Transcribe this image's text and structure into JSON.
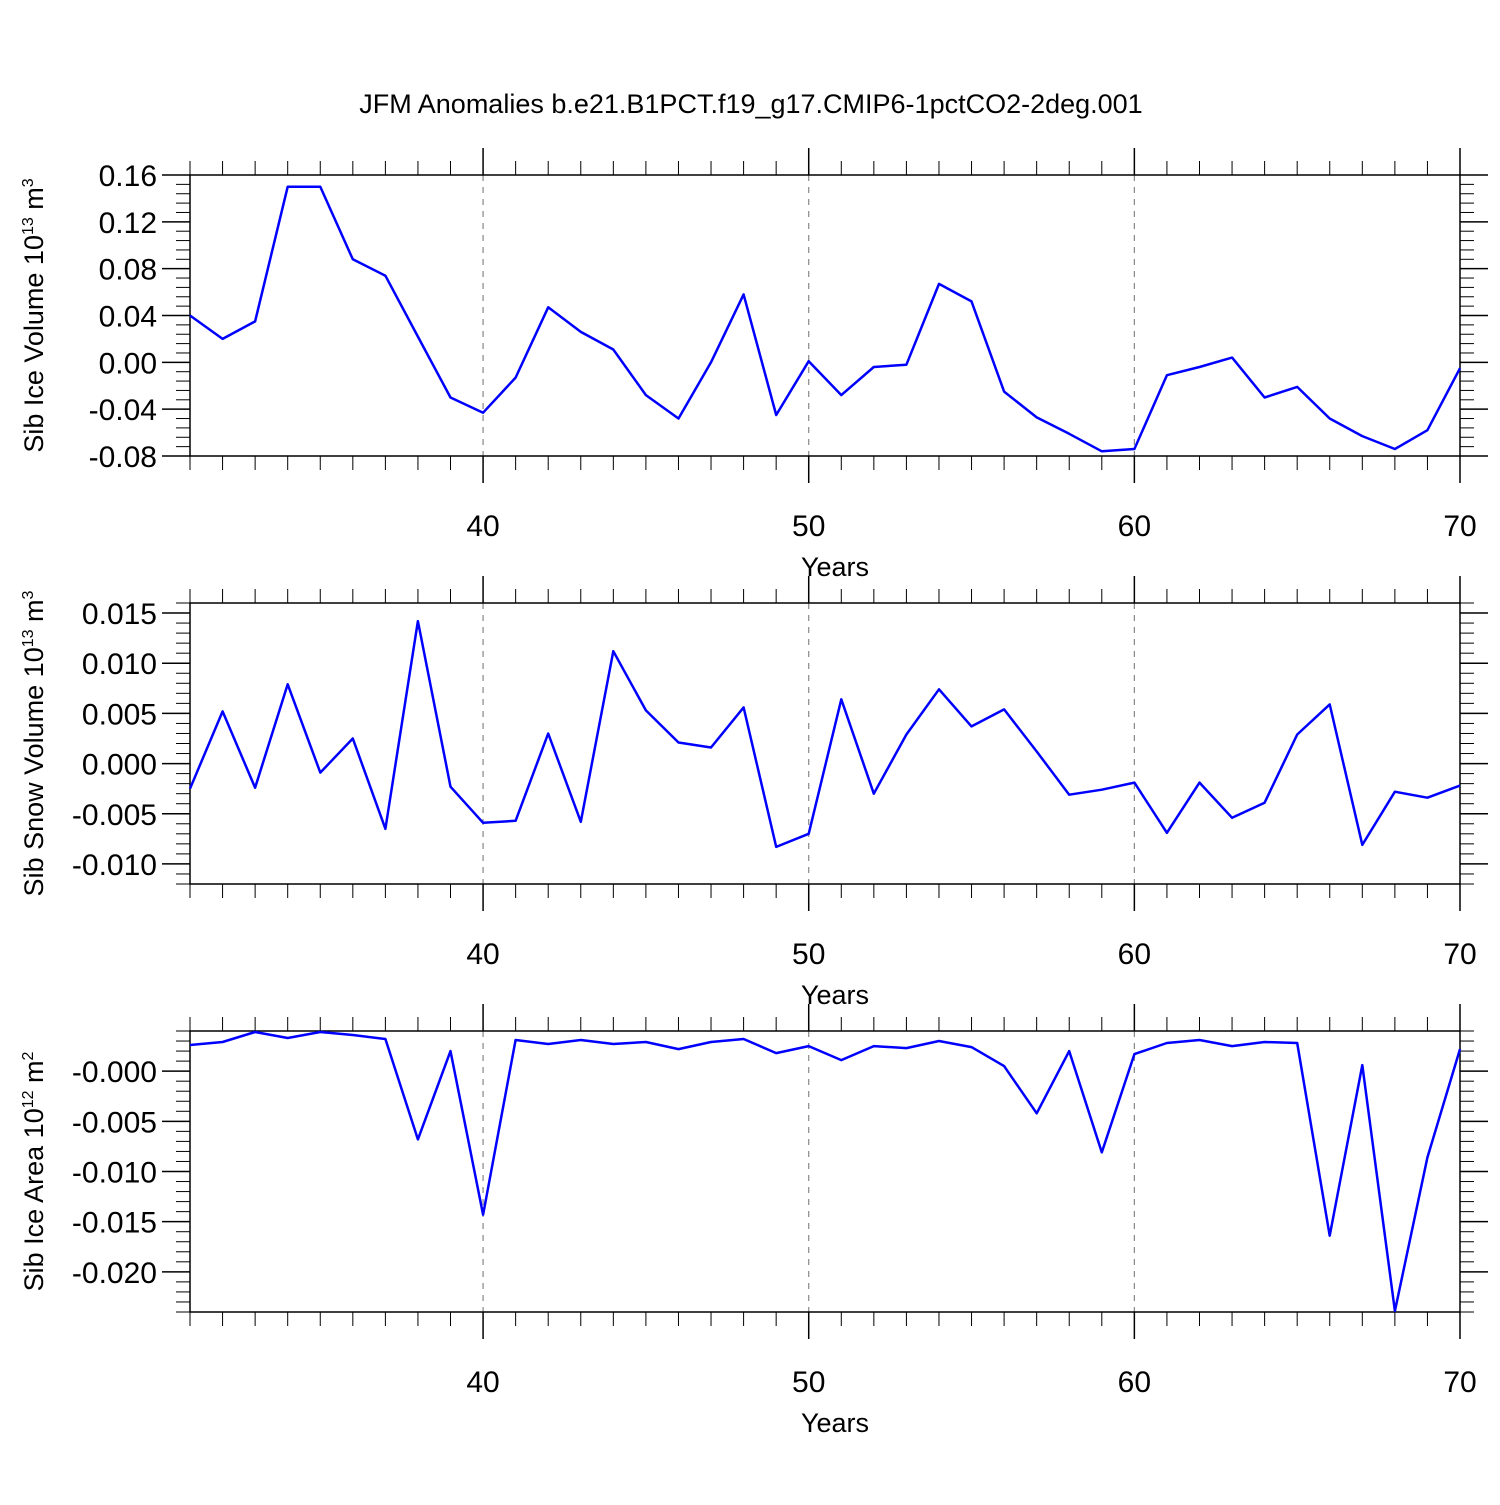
{
  "title": "JFM Anomalies b.e21.B1PCT.f19_g17.CMIP6-1pctCO2-2deg.001",
  "colors": {
    "series": "#0000ff",
    "axes": "#000000",
    "grid": "#888888"
  },
  "chart_data": [
    {
      "type": "line",
      "title": "JFM Anomalies b.e21.B1PCT.f19_g17.CMIP6-1pctCO2-2deg.001",
      "xlabel": "Years",
      "ylabel": "Sib Ice Volume 10",
      "ylabel_exp": "13",
      "ylabel_unit": "m",
      "ylabel_unit_exp": "3",
      "xlim": [
        31,
        70
      ],
      "ylim": [
        -0.08,
        0.16
      ],
      "yticks": [
        -0.08,
        -0.04,
        0.0,
        0.04,
        0.08,
        0.12,
        0.16
      ],
      "ytick_labels": [
        "-0.08",
        "-0.04",
        "0.00",
        "0.04",
        "0.08",
        "0.12",
        "0.16"
      ],
      "xticks": [
        40,
        50,
        60,
        70
      ],
      "xtick_labels": [
        "40",
        "50",
        "60",
        "70"
      ],
      "grid_x": [
        40,
        50,
        60
      ],
      "x": [
        31,
        32,
        33,
        34,
        35,
        36,
        37,
        38,
        39,
        40,
        41,
        42,
        43,
        44,
        45,
        46,
        47,
        48,
        49,
        50,
        51,
        52,
        53,
        54,
        55,
        56,
        57,
        58,
        59,
        60,
        61,
        62,
        63,
        64,
        65,
        66,
        67,
        68,
        69,
        70
      ],
      "y": [
        0.04,
        0.02,
        0.035,
        0.15,
        0.15,
        0.088,
        0.074,
        0.022,
        -0.03,
        -0.043,
        -0.013,
        0.047,
        0.026,
        0.011,
        -0.028,
        -0.048,
        0.0,
        0.058,
        -0.045,
        0.001,
        -0.028,
        -0.004,
        -0.002,
        0.067,
        0.052,
        -0.025,
        -0.047,
        -0.061,
        -0.076,
        -0.074,
        -0.011,
        -0.004,
        0.004,
        -0.03,
        -0.021,
        -0.048,
        -0.063,
        -0.074,
        -0.058,
        -0.005
      ]
    },
    {
      "type": "line",
      "xlabel": "Years",
      "ylabel": "Sib Snow Volume 10",
      "ylabel_exp": "13",
      "ylabel_unit": "m",
      "ylabel_unit_exp": "3",
      "xlim": [
        31,
        70
      ],
      "ylim": [
        -0.012,
        0.016
      ],
      "yticks": [
        -0.01,
        -0.005,
        0.0,
        0.005,
        0.01,
        0.015
      ],
      "ytick_labels": [
        "-0.010",
        "-0.005",
        "0.000",
        "0.005",
        "0.010",
        "0.015"
      ],
      "xticks": [
        40,
        50,
        60,
        70
      ],
      "xtick_labels": [
        "40",
        "50",
        "60",
        "70"
      ],
      "grid_x": [
        40,
        50,
        60
      ],
      "x": [
        31,
        32,
        33,
        34,
        35,
        36,
        37,
        38,
        39,
        40,
        41,
        42,
        43,
        44,
        45,
        46,
        47,
        48,
        49,
        50,
        51,
        52,
        53,
        54,
        55,
        56,
        57,
        58,
        59,
        60,
        61,
        62,
        63,
        64,
        65,
        66,
        67,
        68,
        69,
        70
      ],
      "y": [
        -0.0025,
        0.0052,
        -0.0024,
        0.0079,
        -0.0009,
        0.0025,
        -0.0065,
        0.0142,
        -0.0023,
        -0.0059,
        -0.0057,
        0.003,
        -0.0058,
        0.0112,
        0.0053,
        0.0021,
        0.0016,
        0.0056,
        -0.0083,
        -0.007,
        0.0064,
        -0.003,
        0.0029,
        0.0074,
        0.0037,
        0.0054,
        0.0012,
        -0.0031,
        -0.0026,
        -0.0019,
        -0.0069,
        -0.0019,
        -0.0054,
        -0.0039,
        0.0029,
        0.0059,
        -0.0081,
        -0.0028,
        -0.0034,
        -0.0022
      ]
    },
    {
      "type": "line",
      "xlabel": "Years",
      "ylabel": "Sib Ice Area 10",
      "ylabel_exp": "12",
      "ylabel_unit": "m",
      "ylabel_unit_exp": "2",
      "xlim": [
        31,
        70
      ],
      "ylim": [
        -0.024,
        0.004
      ],
      "yticks": [
        -0.02,
        -0.015,
        -0.01,
        -0.005,
        0.0
      ],
      "ytick_labels": [
        "-0.020",
        "-0.015",
        "-0.010",
        "-0.005",
        "-0.000"
      ],
      "xticks": [
        40,
        50,
        60,
        70
      ],
      "xtick_labels": [
        "40",
        "50",
        "60",
        "70"
      ],
      "grid_x": [
        40,
        50,
        60
      ],
      "x": [
        31,
        32,
        33,
        34,
        35,
        36,
        37,
        38,
        39,
        40,
        41,
        42,
        43,
        44,
        45,
        46,
        47,
        48,
        49,
        50,
        51,
        52,
        53,
        54,
        55,
        56,
        57,
        58,
        59,
        60,
        61,
        62,
        63,
        64,
        65,
        66,
        67,
        68,
        69,
        70
      ],
      "y": [
        0.0026,
        0.0029,
        0.0039,
        0.0033,
        0.0039,
        0.0036,
        0.0032,
        -0.0068,
        0.002,
        -0.0143,
        0.0031,
        0.0027,
        0.0031,
        0.0027,
        0.0029,
        0.0022,
        0.0029,
        0.0032,
        0.0018,
        0.0025,
        0.0011,
        0.0025,
        0.0023,
        0.003,
        0.0024,
        0.0005,
        -0.0042,
        0.002,
        -0.0081,
        0.0017,
        0.0028,
        0.0031,
        0.0025,
        0.0029,
        0.0028,
        -0.0164,
        0.0006,
        -0.0239,
        -0.0086,
        0.0022
      ]
    }
  ]
}
